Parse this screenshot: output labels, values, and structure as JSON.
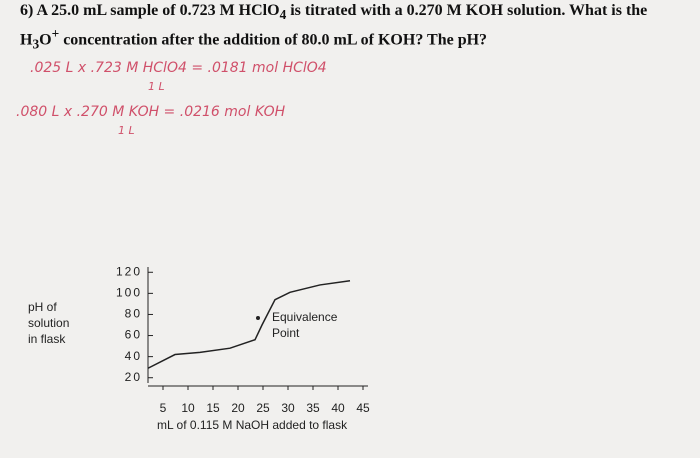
{
  "question": {
    "line1": [
      "6) A 25.0 mL sample of 0.723 M HClO",
      "4",
      " is titrated with a 0.270 M KOH solution. What is the"
    ],
    "line2": [
      "H",
      "3",
      "O",
      "+",
      " concentration after the addition of 80.0 mL of KOH?  The pH?"
    ]
  },
  "notes": [
    ".025 L x .723 M HClO4 = .0181 mol HClO4",
    "1 L",
    ".080 L x .270 M KOH = .0216 mol KOH",
    "1 L"
  ],
  "chart_data": {
    "type": "line",
    "y_label": [
      "pH of",
      "solution",
      "in flask"
    ],
    "x_label": "mL of 0.115 M NaOH added to flask",
    "annotation": [
      "Equivalence",
      "Point"
    ],
    "x": [
      2,
      7.4,
      12.4,
      18.4,
      23.4,
      24.8,
      27.4,
      30.4,
      36.4,
      42.4
    ],
    "values": [
      29,
      42,
      44,
      48,
      56,
      70,
      94,
      101,
      108,
      112
    ],
    "color": "#222222",
    "xlim": [
      2,
      46
    ],
    "ylim": [
      15,
      125
    ],
    "xticks": [
      5,
      10,
      15,
      20,
      25,
      30,
      35,
      40,
      45
    ],
    "yticks": [
      20,
      40,
      60,
      80,
      100,
      120
    ]
  }
}
